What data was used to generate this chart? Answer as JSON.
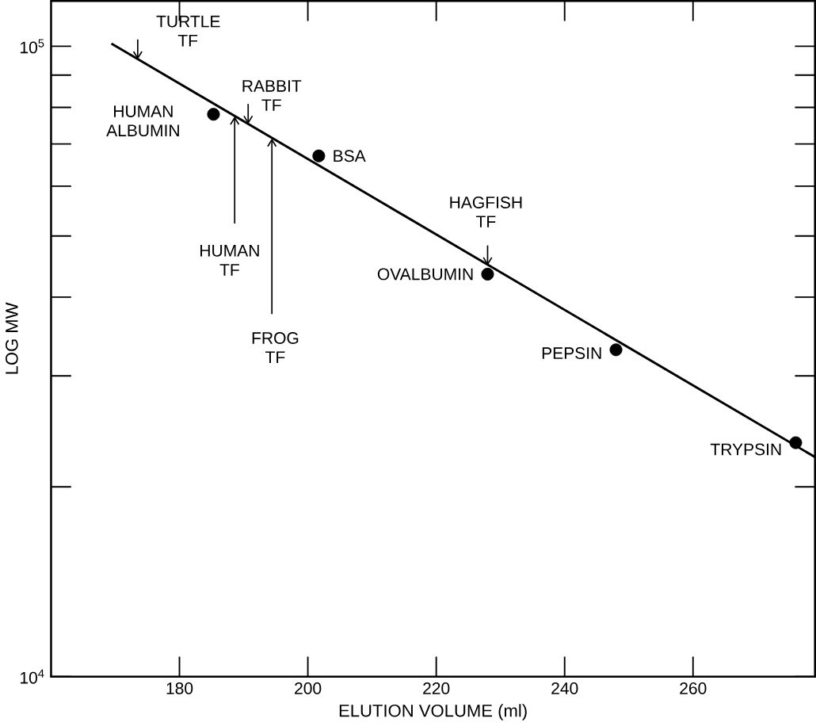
{
  "chart_data": {
    "type": "scatter",
    "xlabel": "ELUTION VOLUME (ml)",
    "ylabel": "LOG MW",
    "log": "y",
    "xlim": [
      160,
      279
    ],
    "ylim": [
      10000,
      118000
    ],
    "xticks": [
      180,
      200,
      220,
      240,
      260
    ],
    "yticks": [
      {
        "value": 10000,
        "label": "10$^{4}$"
      },
      {
        "value": 20000,
        "label": null
      },
      {
        "value": 30000,
        "label": null
      },
      {
        "value": 40000,
        "label": null
      },
      {
        "value": 50000,
        "label": null
      },
      {
        "value": 60000,
        "label": null
      },
      {
        "value": 70000,
        "label": null
      },
      {
        "value": 80000,
        "label": null
      },
      {
        "value": 90000,
        "label": null
      },
      {
        "value": 100000,
        "label": "10$^{5}$"
      }
    ],
    "grid": false,
    "series": [
      {
        "marker": "circle",
        "color": "#000000",
        "x": [
          185.3,
          201.7,
          228,
          248,
          276
        ],
        "values": [
          78000,
          67000,
          43500,
          33000,
          23500
        ]
      },
      {
        "type": "line",
        "marker": "none",
        "color": "#000000",
        "x": [
          169.4,
          279
        ],
        "values": [
          101000,
          22300
        ]
      }
    ],
    "annotations": [
      {
        "text": "TURTLE TF",
        "x": 173.5,
        "y": 95300
      },
      {
        "text": "RABBIT TF",
        "x": 190.7,
        "y": 75300
      },
      {
        "text": "HUMAN TF",
        "x": 188.6,
        "y": 77400
      },
      {
        "text": "FROG TF",
        "x": 194.4,
        "y": 71400
      },
      {
        "text": "HAGFISH TF",
        "x": 228,
        "y": 44900
      },
      {
        "text": "HUMAN ALBUMIN",
        "x": 185.3,
        "y": 78000
      },
      {
        "text": "BSA",
        "x": 201.7,
        "y": 67000
      },
      {
        "text": "OVALBUMIN",
        "x": 228,
        "y": 43500
      },
      {
        "text": "PEPSIN",
        "x": 248,
        "y": 33000
      },
      {
        "text": "TRYPSIN",
        "x": 276,
        "y": 23500
      }
    ]
  }
}
